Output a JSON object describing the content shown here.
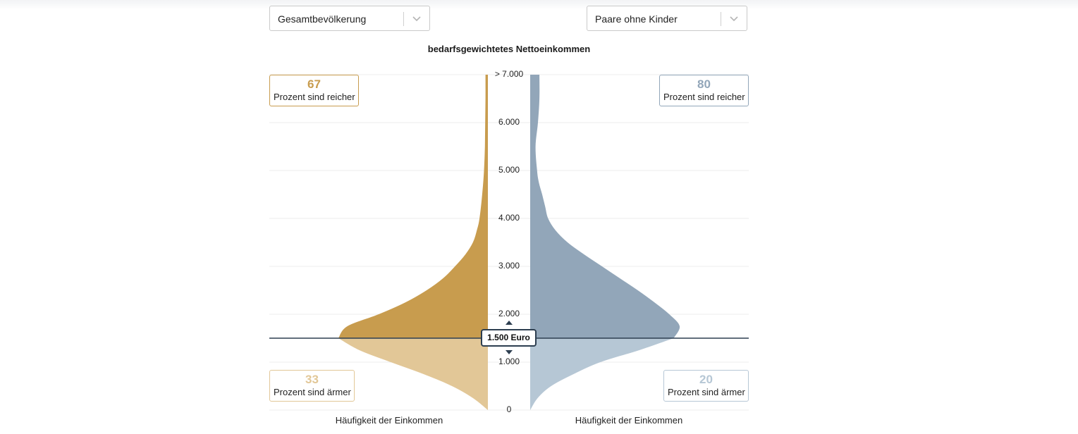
{
  "controls": {
    "left_select": {
      "value": "Gesamtbevölkerung"
    },
    "right_select": {
      "value": "Paare ohne Kinder"
    }
  },
  "colors": {
    "left_upper": "#c89c4e",
    "left_lower": "#e2c797",
    "right_upper": "#92a6b9",
    "right_lower": "#b6c7d5",
    "marker_line": "#2d3e50",
    "grid": "#ececec"
  },
  "chart_data": {
    "type": "violin",
    "title": "bedarfsgewichtetes Nettoeinkommen",
    "y_tick_labels": [
      "0",
      "1.000",
      "2.000",
      "3.000",
      "4.000",
      "5.000",
      "6.000",
      "> 7.000"
    ],
    "y_ticks": [
      0,
      1000,
      2000,
      3000,
      4000,
      5000,
      6000,
      7000
    ],
    "ylim": [
      0,
      7000
    ],
    "xlabel_left": "Häufigkeit der Einkommen",
    "xlabel_right": "Häufigkeit der Einkommen",
    "selected_value": 1500,
    "selected_label": "1.500 Euro",
    "left": {
      "percent_richer": "67",
      "percent_poorer": "33",
      "richer_label": "Prozent sind reicher",
      "poorer_label": "Prozent sind ärmer",
      "density": [
        [
          0,
          0.0
        ],
        [
          250,
          0.1
        ],
        [
          500,
          0.24
        ],
        [
          750,
          0.43
        ],
        [
          1000,
          0.65
        ],
        [
          1250,
          0.86
        ],
        [
          1500,
          1.0
        ],
        [
          1750,
          0.94
        ],
        [
          2000,
          0.73
        ],
        [
          2250,
          0.55
        ],
        [
          2500,
          0.41
        ],
        [
          2750,
          0.3
        ],
        [
          3000,
          0.22
        ],
        [
          3250,
          0.15
        ],
        [
          3500,
          0.1
        ],
        [
          3750,
          0.074
        ],
        [
          4000,
          0.056
        ],
        [
          4500,
          0.038
        ],
        [
          5000,
          0.026
        ],
        [
          5500,
          0.02
        ],
        [
          6000,
          0.018
        ],
        [
          6500,
          0.016
        ],
        [
          7000,
          0.016
        ]
      ]
    },
    "right": {
      "percent_richer": "80",
      "percent_poorer": "20",
      "richer_label": "Prozent sind reicher",
      "poorer_label": "Prozent sind ärmer",
      "density": [
        [
          0,
          0.0
        ],
        [
          250,
          0.05
        ],
        [
          500,
          0.14
        ],
        [
          750,
          0.29
        ],
        [
          1000,
          0.47
        ],
        [
          1250,
          0.73
        ],
        [
          1500,
          0.96
        ],
        [
          1750,
          1.0
        ],
        [
          2000,
          0.93
        ],
        [
          2250,
          0.83
        ],
        [
          2500,
          0.72
        ],
        [
          2750,
          0.6
        ],
        [
          3000,
          0.48
        ],
        [
          3250,
          0.36
        ],
        [
          3500,
          0.25
        ],
        [
          3750,
          0.17
        ],
        [
          4000,
          0.12
        ],
        [
          4250,
          0.1
        ],
        [
          4500,
          0.08
        ],
        [
          4750,
          0.058
        ],
        [
          5000,
          0.046
        ],
        [
          5500,
          0.036
        ],
        [
          6000,
          0.052
        ],
        [
          6500,
          0.062
        ],
        [
          7000,
          0.062
        ]
      ]
    }
  }
}
